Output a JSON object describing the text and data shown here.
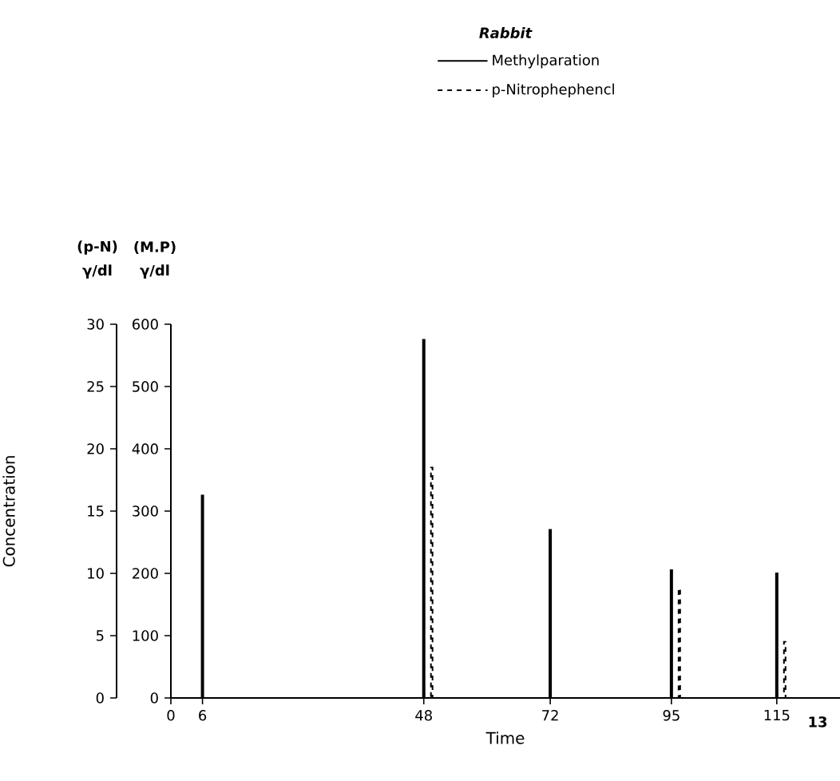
{
  "chart_data": {
    "type": "bar",
    "xlabel": "Time",
    "ylabel": "Concentration",
    "legend_title": "Rabbit",
    "legend": "top right",
    "annotations": [
      "(p-N)",
      "γ/dl",
      "(M.P)",
      "γ/dl",
      "13"
    ],
    "xlim": [
      0,
      127
    ],
    "xticks": [
      0,
      6,
      48,
      72,
      95,
      115
    ],
    "ylim": [
      0,
      30
    ],
    "yticks": [
      0,
      5,
      10,
      15,
      20,
      25,
      30
    ],
    "y2lim": [
      0,
      600
    ],
    "y2ticks": [
      0,
      100,
      200,
      300,
      400,
      500,
      600
    ],
    "series": [
      {
        "name": "Methylparation",
        "color": "#000000",
        "line_style": "solid",
        "axis": "y2",
        "x": [
          6,
          48,
          72,
          95,
          115
        ],
        "values": [
          325,
          575,
          270,
          205,
          200
        ]
      },
      {
        "name": "p-Nitrophephencl",
        "color": "#000000",
        "line_style": "dashed",
        "axis": "y",
        "x": [
          48,
          95,
          115
        ],
        "values": [
          18.5,
          8.8,
          4.5
        ]
      }
    ]
  }
}
